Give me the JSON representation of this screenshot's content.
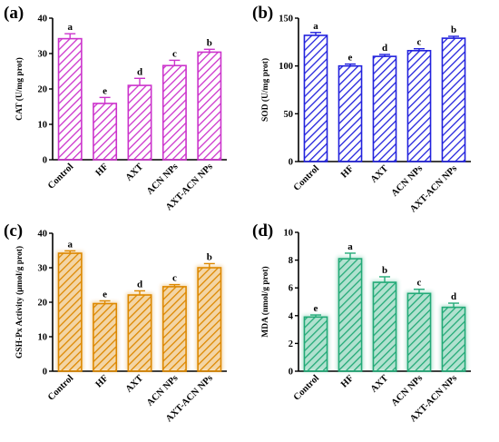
{
  "chart_data": [
    {
      "type": "bar",
      "panel": "(a)",
      "ylabel": "CAT (U/mg prot)",
      "ylim": [
        0,
        40
      ],
      "yticks": [
        0,
        10,
        20,
        30,
        40
      ],
      "categories": [
        "Control",
        "HF",
        "AXT",
        "ACN NPs",
        "AXT-ACN NPs"
      ],
      "values": [
        34.2,
        15.9,
        21.0,
        26.6,
        30.4
      ],
      "errors": [
        1.4,
        1.7,
        2.0,
        1.5,
        0.8
      ],
      "significance": [
        "a",
        "e",
        "d",
        "c",
        "b"
      ],
      "color": "#cc33cc",
      "glow": false
    },
    {
      "type": "bar",
      "panel": "(b)",
      "ylabel": "SOD (U/mg prot)",
      "ylim": [
        0,
        150
      ],
      "yticks": [
        0,
        50,
        100,
        150
      ],
      "categories": [
        "Control",
        "HF",
        "AXT",
        "ACN NPs",
        "AXT-ACN NPs"
      ],
      "values": [
        132,
        100,
        110,
        116,
        129
      ],
      "errors": [
        3,
        2,
        2,
        2,
        2
      ],
      "significance": [
        "a",
        "e",
        "d",
        "c",
        "b"
      ],
      "color": "#2222dd",
      "glow": false
    },
    {
      "type": "bar",
      "panel": "(c)",
      "ylabel": "GSH-Px Activity (μmol/g prot)",
      "ylim": [
        0,
        40
      ],
      "yticks": [
        0,
        10,
        20,
        30,
        40
      ],
      "categories": [
        "Control",
        "HF",
        "AXT",
        "ACN NPs",
        "AXT-ACN NPs"
      ],
      "values": [
        34.2,
        19.6,
        22.1,
        24.5,
        30.0
      ],
      "errors": [
        0.7,
        0.8,
        1.2,
        0.6,
        1.2
      ],
      "significance": [
        "a",
        "e",
        "d",
        "c",
        "b"
      ],
      "color": "#dd8800",
      "glow": true
    },
    {
      "type": "bar",
      "panel": "(d)",
      "ylabel": "MDA (nmol/g prot)",
      "ylim": [
        0,
        10
      ],
      "yticks": [
        0,
        2,
        4,
        6,
        8,
        10
      ],
      "categories": [
        "Control",
        "HF",
        "AXT",
        "ACN NPs",
        "AXT-ACN NPs"
      ],
      "values": [
        3.9,
        8.1,
        6.4,
        5.6,
        4.6
      ],
      "errors": [
        0.15,
        0.4,
        0.4,
        0.3,
        0.3
      ],
      "significance": [
        "e",
        "a",
        "b",
        "c",
        "d"
      ],
      "color": "#22aa77",
      "glow": true
    }
  ]
}
